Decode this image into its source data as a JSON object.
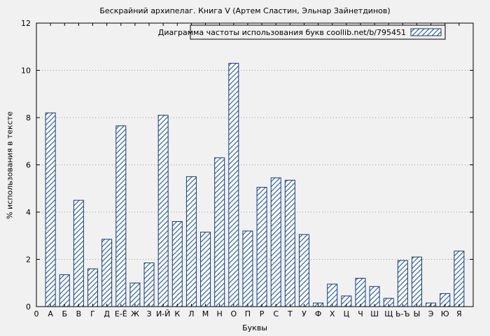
{
  "window": {
    "title": "Бескрайний архипелаг. Книга V (Артем Сластин, Эльнар Зайнетдинов)"
  },
  "legend": {
    "label": "Диаграмма частоты использования букв coollib.net/b/795451"
  },
  "axes": {
    "ylabel": "% использования в тексте",
    "xlabel": "Буквы"
  },
  "colors": {
    "background": "#f1f1f1",
    "bar_fill": "#ffffff",
    "bar_stroke": "#123a7d",
    "hatch": "#2e5fa3",
    "grid": "#9a9a9a",
    "frame": "#000000"
  },
  "chart_data": {
    "type": "bar",
    "title": "Бескрайний архипелаг. Книга V (Артем Сластин, Эльнар Зайнетдинов)",
    "xlabel": "Буквы",
    "ylabel": "% использования в тексте",
    "legend": "Диаграмма частоты использования букв coollib.net/b/795451",
    "origin_label": "0",
    "ylim": [
      0,
      12
    ],
    "yticks": [
      0,
      2,
      4,
      6,
      8,
      10,
      12
    ],
    "grid": true,
    "legend_position": "top-right",
    "categories": [
      "А",
      "Б",
      "В",
      "Г",
      "Д",
      "Е-Ё",
      "Ж",
      "З",
      "И-Й",
      "К",
      "Л",
      "М",
      "Н",
      "О",
      "П",
      "Р",
      "С",
      "Т",
      "У",
      "Ф",
      "Х",
      "Ц",
      "Ч",
      "Ш",
      "Щ",
      "Ь-Ъ",
      "Ы",
      "Э",
      "Ю",
      "Я"
    ],
    "values": [
      8.2,
      1.35,
      4.5,
      1.6,
      2.85,
      7.65,
      1.0,
      1.85,
      8.1,
      3.6,
      5.5,
      3.15,
      6.3,
      10.3,
      3.2,
      5.05,
      5.45,
      5.35,
      3.05,
      0.15,
      0.95,
      0.45,
      1.2,
      0.85,
      0.35,
      1.95,
      2.1,
      0.15,
      0.55,
      2.35
    ]
  }
}
